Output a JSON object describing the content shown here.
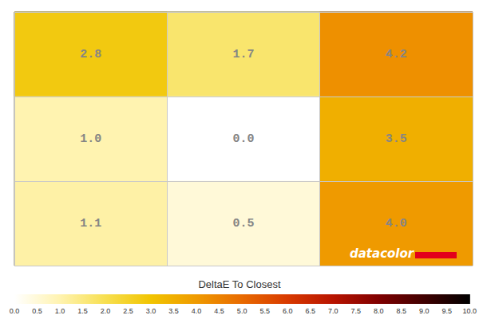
{
  "chart_data": {
    "type": "heatmap",
    "values": [
      [
        2.8,
        1.7,
        4.2
      ],
      [
        1.0,
        0.0,
        3.5
      ],
      [
        1.1,
        0.5,
        4.0
      ]
    ],
    "value_labels": [
      [
        "2.8",
        "1.7",
        "4.2"
      ],
      [
        "1.0",
        "0.0",
        "3.5"
      ],
      [
        "1.1",
        "0.5",
        "4.0"
      ]
    ],
    "data_labels": true,
    "grid": true,
    "tick_labels": false,
    "colorbar": {
      "title": "DeltaE To Closest",
      "range": [
        0,
        10
      ],
      "ticks": [
        {
          "value": 0,
          "label": "0.0"
        },
        {
          "value": 0.5,
          "label": "0.5"
        },
        {
          "value": 1,
          "label": "1.0"
        },
        {
          "value": 1.5,
          "label": "1.5"
        },
        {
          "value": 2,
          "label": "2.0"
        },
        {
          "value": 2.5,
          "label": "2.5"
        },
        {
          "value": 3,
          "label": "3.0"
        },
        {
          "value": 3.5,
          "label": "3.5"
        },
        {
          "value": 4,
          "label": "4.0"
        },
        {
          "value": 4.5,
          "label": "4.5"
        },
        {
          "value": 5,
          "label": "5.0"
        },
        {
          "value": 5.5,
          "label": "5.5"
        },
        {
          "value": 6,
          "label": "6.0"
        },
        {
          "value": 6.5,
          "label": "6.5"
        },
        {
          "value": 7,
          "label": "7.0"
        },
        {
          "value": 7.5,
          "label": "7.5"
        },
        {
          "value": 8,
          "label": "8.0"
        },
        {
          "value": 8.5,
          "label": "8.5"
        },
        {
          "value": 9,
          "label": "9.0"
        },
        {
          "value": 9.5,
          "label": "9.5"
        },
        {
          "value": 10,
          "label": "10.0"
        }
      ]
    },
    "annotations": [
      "datacolor"
    ]
  }
}
